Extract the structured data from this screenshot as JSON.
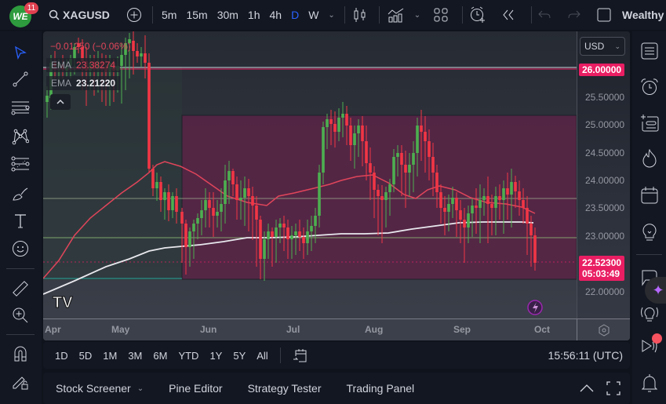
{
  "header": {
    "logo_text": "WE",
    "notifications_count": "11",
    "symbol": "XAGUSD",
    "intervals": [
      "5m",
      "15m",
      "30m",
      "1h",
      "4h",
      "D",
      "W"
    ],
    "active_interval": "D",
    "account_label": "Wealthy"
  },
  "legend": {
    "change": "−0.01250 (−0.06%)",
    "ema1_label": "EMA",
    "ema1_value": "23.38274",
    "ema2_label": "EMA",
    "ema2_value": "23.21220"
  },
  "price_scale": {
    "currency": "USD",
    "labels": [
      "25.50000",
      "25.00000",
      "24.50000",
      "24.00000",
      "23.50000",
      "23.00000",
      "22.00000"
    ],
    "highlight_level": "26.00000",
    "last_price": "22.52300",
    "countdown": "05:03:49"
  },
  "time_axis": {
    "labels": [
      "Apr",
      "May",
      "Jun",
      "Jul",
      "Aug",
      "Sep",
      "Oct"
    ]
  },
  "range_bar": {
    "ranges": [
      "1D",
      "5D",
      "1M",
      "3M",
      "6M",
      "YTD",
      "1Y",
      "5Y",
      "All"
    ],
    "clock": "15:56:11 (UTC)"
  },
  "bottom_panel": {
    "tabs": [
      "Stock Screener",
      "Pine Editor",
      "Strategy Tester",
      "Trading Panel"
    ]
  },
  "colors": {
    "up": "#4caf50",
    "down": "#f23645",
    "ema_fast": "#e0455a",
    "ema_slow": "#e8e8ee",
    "accent": "#2962ff",
    "price_tag": "#e91e63",
    "zone": "#5a2446"
  }
}
